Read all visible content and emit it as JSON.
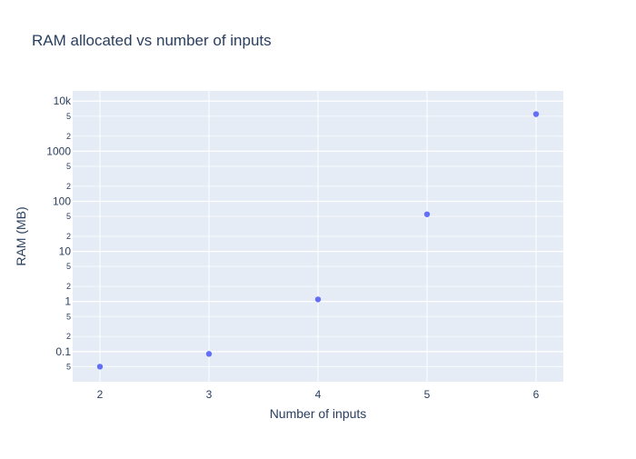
{
  "chart_data": {
    "type": "scatter",
    "title": "RAM allocated vs number of inputs",
    "xlabel": "Number of inputs",
    "ylabel": "RAM (MB)",
    "y_scale": "log",
    "xlim": [
      1.75,
      6.25
    ],
    "ylim": [
      0.025,
      16000
    ],
    "x_ticks": [
      2,
      3,
      4,
      5,
      6
    ],
    "y_major_ticks": [
      {
        "value": 0.1,
        "label": "0.1"
      },
      {
        "value": 1,
        "label": "1"
      },
      {
        "value": 10,
        "label": "10"
      },
      {
        "value": 100,
        "label": "100"
      },
      {
        "value": 1000,
        "label": "1000"
      },
      {
        "value": 10000,
        "label": "10k"
      }
    ],
    "y_minor_ticks": [
      {
        "value": 0.05,
        "label": "5"
      },
      {
        "value": 0.2,
        "label": "2"
      },
      {
        "value": 0.5,
        "label": "5"
      },
      {
        "value": 2,
        "label": "2"
      },
      {
        "value": 5,
        "label": "5"
      },
      {
        "value": 20,
        "label": "2"
      },
      {
        "value": 50,
        "label": "5"
      },
      {
        "value": 200,
        "label": "2"
      },
      {
        "value": 500,
        "label": "5"
      },
      {
        "value": 2000,
        "label": "2"
      },
      {
        "value": 5000,
        "label": "5"
      }
    ],
    "grid": true,
    "colors": {
      "marker": "#636efa",
      "plot_bg": "#e5ecf6",
      "grid": "#ffffff",
      "text": "#2a3f5f"
    },
    "series": [
      {
        "x": [
          2,
          3,
          4,
          5,
          6
        ],
        "y": [
          0.05,
          0.09,
          1.1,
          55,
          5500
        ]
      }
    ]
  }
}
